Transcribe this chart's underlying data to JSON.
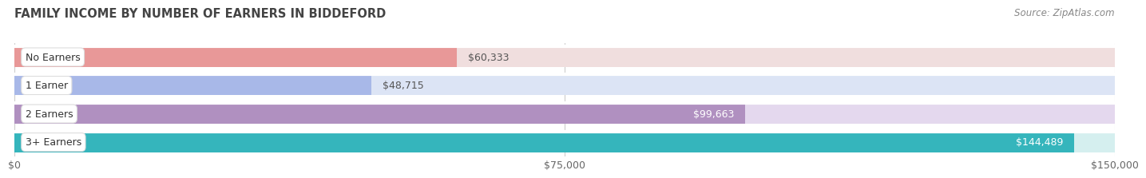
{
  "title": "FAMILY INCOME BY NUMBER OF EARNERS IN BIDDEFORD",
  "source": "Source: ZipAtlas.com",
  "categories": [
    "No Earners",
    "1 Earner",
    "2 Earners",
    "3+ Earners"
  ],
  "values": [
    60333,
    48715,
    99663,
    144489
  ],
  "value_labels": [
    "$60,333",
    "$48,715",
    "$99,663",
    "$144,489"
  ],
  "bar_colors": [
    "#E89898",
    "#A8B8E8",
    "#B090C0",
    "#35B5BC"
  ],
  "bar_bg_colors": [
    "#F0DEDE",
    "#DCE4F5",
    "#E4D8EE",
    "#D5EFEF"
  ],
  "label_colors": [
    "#555555",
    "#555555",
    "#ffffff",
    "#ffffff"
  ],
  "xlim": [
    0,
    150000
  ],
  "xtick_values": [
    0,
    75000,
    150000
  ],
  "xtick_labels": [
    "$0",
    "$75,000",
    "$150,000"
  ],
  "bg_color": "#ffffff",
  "title_fontsize": 10.5,
  "source_fontsize": 8.5,
  "bar_edge_color": "#dddddd"
}
